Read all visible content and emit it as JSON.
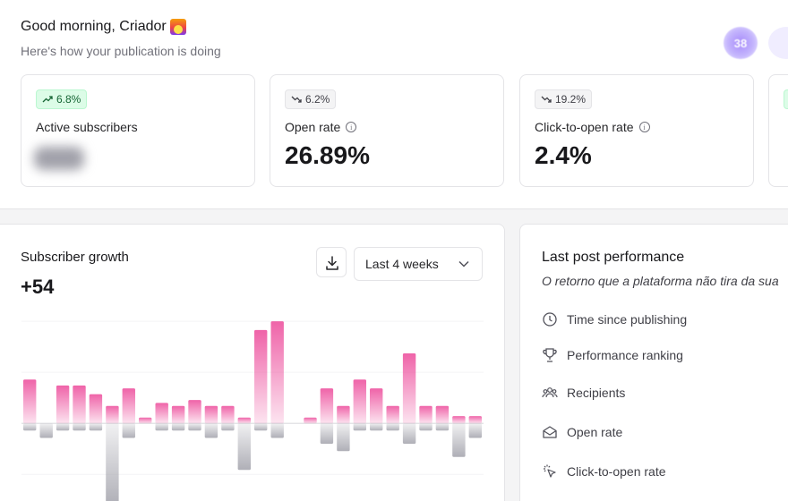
{
  "header": {
    "greeting": "Good morning, Criador",
    "subtitle": "Here's how your publication is doing",
    "avatar_count": "38",
    "greeting_icon": "sunrise-emoji"
  },
  "stats": [
    {
      "trend": "up",
      "badge": "6.8%",
      "label": "Active subscribers",
      "value": "",
      "value_hidden": true,
      "info": false
    },
    {
      "trend": "down",
      "badge": "6.2%",
      "label": "Open rate",
      "value": "26.89%",
      "info": true
    },
    {
      "trend": "down",
      "badge": "19.2%",
      "label": "Click-to-open rate",
      "value": "2.4%",
      "info": true
    }
  ],
  "growth": {
    "title": "Subscriber growth",
    "total": "+54",
    "period": "Last 4 weeks",
    "download_icon": "download-icon"
  },
  "chart_data": {
    "type": "bar",
    "series": [
      {
        "values": [
          3,
          0,
          2.6,
          2.6,
          2,
          1.2,
          2.4,
          0.4,
          1.4,
          1.2,
          1.6,
          1.2,
          1.2,
          0.4,
          6.4,
          7,
          0,
          0.4,
          2.4,
          1.2,
          3,
          2.4,
          1.2,
          4.8,
          1.2,
          1.2,
          0.5,
          0.5
        ]
      },
      {
        "values": [
          -0.5,
          -1,
          -0.5,
          -0.5,
          -0.5,
          -5.6,
          -1,
          0,
          -0.5,
          -0.5,
          -0.5,
          -1,
          -0.5,
          -3.2,
          -0.5,
          -1,
          0,
          0,
          -1.4,
          -1.9,
          -0.5,
          -0.5,
          -0.5,
          -1.4,
          -0.5,
          -0.5,
          -2.3,
          -1
        ]
      }
    ],
    "positive_color": "#ec4899",
    "negative_color": "#a1a1aa",
    "ylim": [
      -6,
      7.5
    ],
    "grid": true
  },
  "lpp": {
    "title": "Last post performance",
    "post": "O retorno que a plataforma não tira da sua",
    "metrics": [
      {
        "label": "Time since publishing",
        "icon": "clock-icon"
      },
      {
        "label": "Performance ranking",
        "icon": "trophy-icon"
      },
      {
        "label": "Recipients",
        "icon": "users-icon"
      },
      {
        "label": "Open rate",
        "icon": "envelope-open-icon"
      },
      {
        "label": "Click-to-open rate",
        "icon": "click-icon"
      }
    ]
  }
}
